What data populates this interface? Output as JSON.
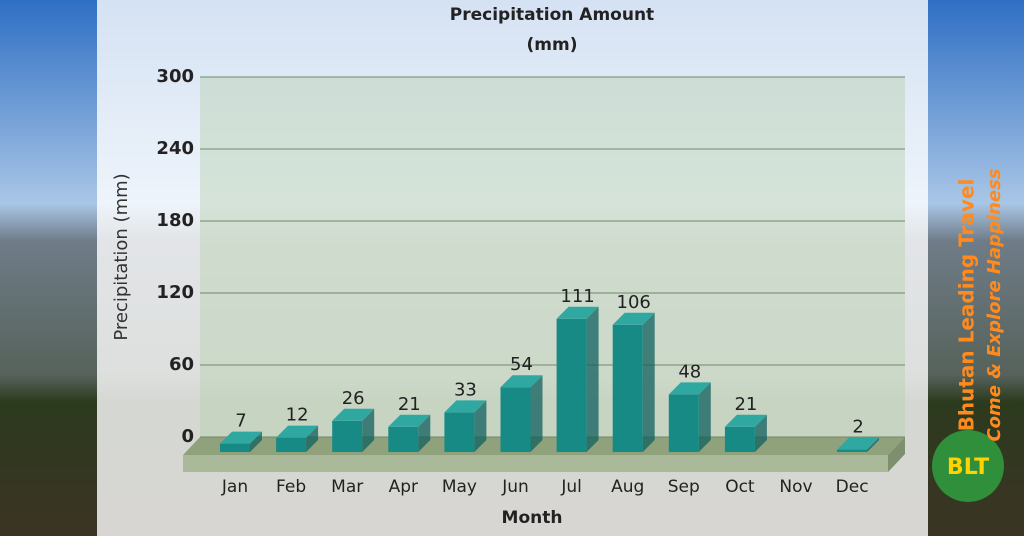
{
  "chart_data": {
    "type": "bar3d",
    "title": "Precipitation Amount",
    "subtitle": "(mm)",
    "x_label": "Month",
    "y_label": "Precipitation (mm)",
    "categories": [
      "Jan",
      "Feb",
      "Mar",
      "Apr",
      "May",
      "Jun",
      "Jul",
      "Aug",
      "Sep",
      "Oct",
      "Nov",
      "Dec"
    ],
    "values": [
      7,
      12,
      26,
      21,
      33,
      54,
      111,
      106,
      48,
      21,
      null,
      2
    ],
    "color": "#178a85",
    "ylim": [
      0,
      300
    ],
    "yticks": [
      0,
      60,
      120,
      180,
      240,
      300
    ],
    "grid": true
  },
  "branding": {
    "name": "Bhutan Leading Travel",
    "slogan": "Come & Explore Happiness",
    "logo": "BLT"
  }
}
